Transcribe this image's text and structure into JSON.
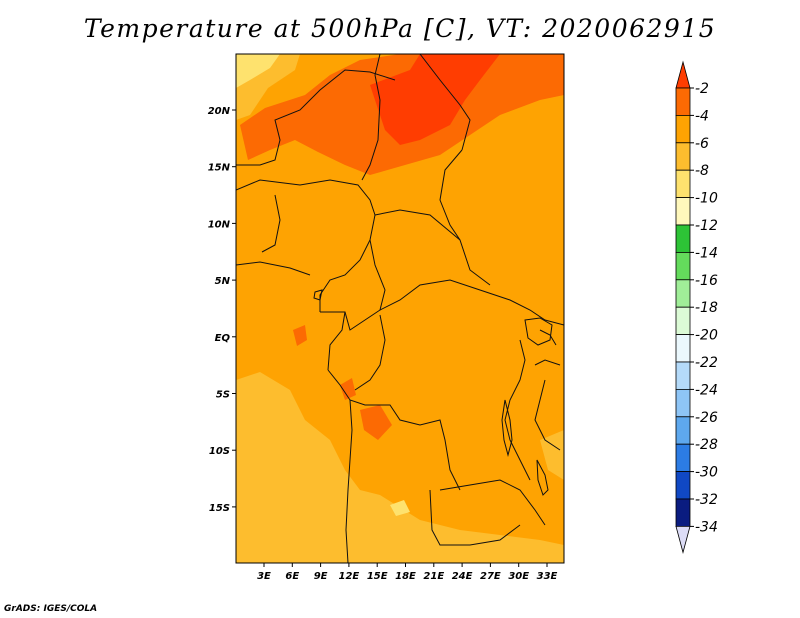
{
  "title": "Temperature at 500hPa [C], VT: 2020062915",
  "footer": "GrADS: IGES/COLA",
  "map": {
    "lon_ticks": [
      "3E",
      "6E",
      "9E",
      "12E",
      "15E",
      "18E",
      "21E",
      "24E",
      "27E",
      "30E",
      "33E"
    ],
    "lat_ticks": [
      "20N",
      "15N",
      "10N",
      "5N",
      "EQ",
      "5S",
      "10S",
      "15S"
    ],
    "background_color": "#fea302"
  },
  "colorbar": {
    "labels": [
      "-2",
      "-4",
      "-6",
      "-8",
      "-10",
      "-12",
      "-14",
      "-16",
      "-18",
      "-20",
      "-22",
      "-24",
      "-26",
      "-28",
      "-30",
      "-32",
      "-34"
    ],
    "colors": [
      "#ff3d01",
      "#fc6a03",
      "#fea302",
      "#fdbd2e",
      "#fee26e",
      "#fff8bc",
      "#2dc336",
      "#64db5c",
      "#a0ee98",
      "#dcfbd6",
      "#ebf8fd",
      "#b4daf9",
      "#8ec5f6",
      "#5ea8ee",
      "#2c7ce4",
      "#1048c4",
      "#0a1c80",
      "#dcdcf6"
    ]
  }
}
